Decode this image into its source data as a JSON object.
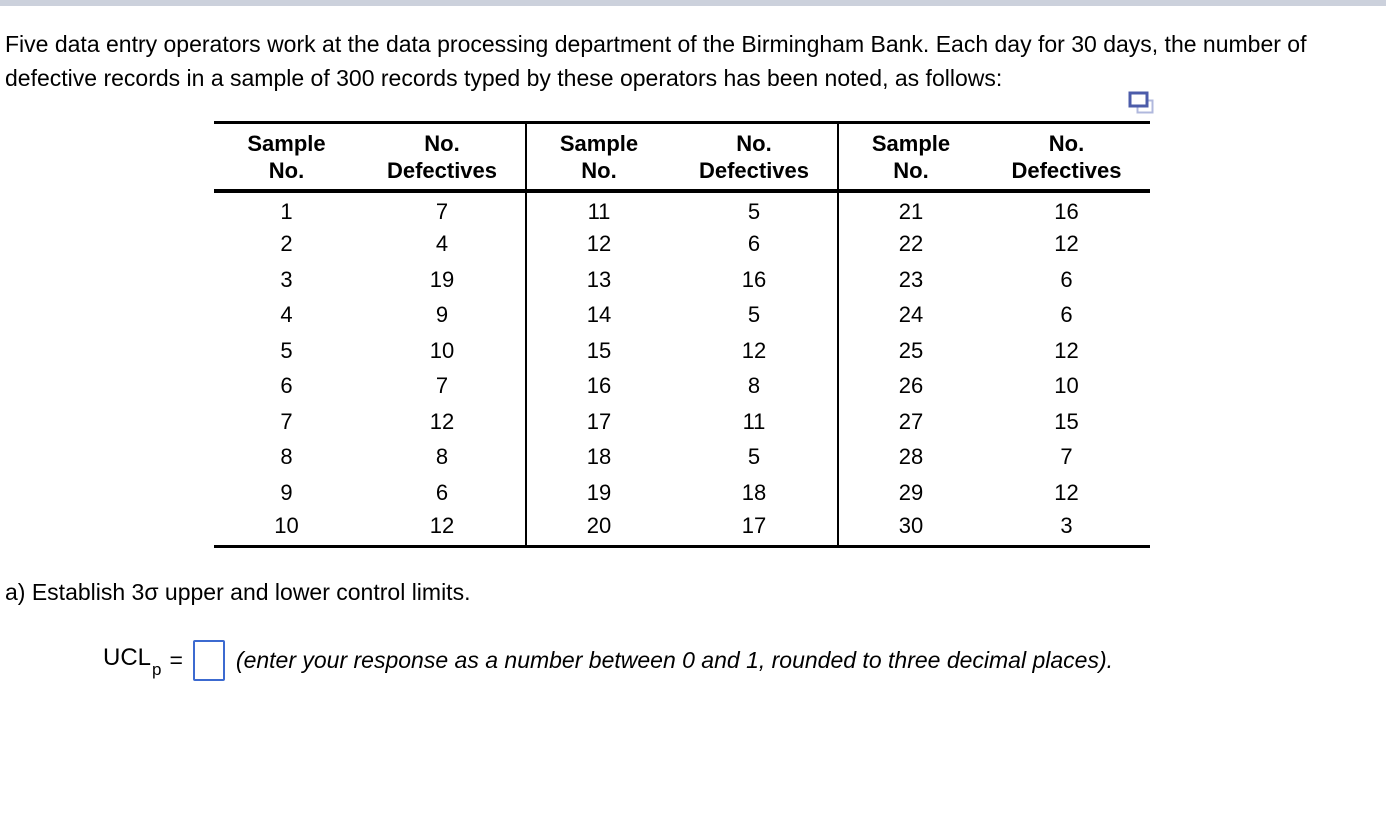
{
  "problem": {
    "statement": "Five data entry operators work at the data processing department of the Birmingham Bank. Each day for 30 days, the number of defective records in a sample of 300 records typed by these operators has been noted, as follows:"
  },
  "table": {
    "header": {
      "sample_line1": "Sample",
      "sample_line2": "No.",
      "defectives_line1": "No.",
      "defectives_line2": "Defectives"
    },
    "groups": [
      {
        "rows": [
          {
            "sample": "1",
            "defectives": "7"
          },
          {
            "sample": "2",
            "defectives": "4"
          },
          {
            "sample": "3",
            "defectives": "19"
          },
          {
            "sample": "4",
            "defectives": "9"
          },
          {
            "sample": "5",
            "defectives": "10"
          },
          {
            "sample": "6",
            "defectives": "7"
          },
          {
            "sample": "7",
            "defectives": "12"
          },
          {
            "sample": "8",
            "defectives": "8"
          },
          {
            "sample": "9",
            "defectives": "6"
          },
          {
            "sample": "10",
            "defectives": "12"
          }
        ]
      },
      {
        "rows": [
          {
            "sample": "11",
            "defectives": "5"
          },
          {
            "sample": "12",
            "defectives": "6"
          },
          {
            "sample": "13",
            "defectives": "16"
          },
          {
            "sample": "14",
            "defectives": "5"
          },
          {
            "sample": "15",
            "defectives": "12"
          },
          {
            "sample": "16",
            "defectives": "8"
          },
          {
            "sample": "17",
            "defectives": "11"
          },
          {
            "sample": "18",
            "defectives": "5"
          },
          {
            "sample": "19",
            "defectives": "18"
          },
          {
            "sample": "20",
            "defectives": "17"
          }
        ]
      },
      {
        "rows": [
          {
            "sample": "21",
            "defectives": "16"
          },
          {
            "sample": "22",
            "defectives": "12"
          },
          {
            "sample": "23",
            "defectives": "6"
          },
          {
            "sample": "24",
            "defectives": "6"
          },
          {
            "sample": "25",
            "defectives": "12"
          },
          {
            "sample": "26",
            "defectives": "10"
          },
          {
            "sample": "27",
            "defectives": "15"
          },
          {
            "sample": "28",
            "defectives": "7"
          },
          {
            "sample": "29",
            "defectives": "12"
          },
          {
            "sample": "30",
            "defectives": "3"
          }
        ]
      }
    ]
  },
  "question_a": "a) Establish 3σ upper and lower control limits.",
  "answer": {
    "label": "UCL",
    "subscript": "p",
    "equals": "=",
    "value": "",
    "hint": "(enter your response as a number between 0 and 1, rounded to three decimal places)."
  },
  "icons": {
    "copy": "copy-table-icon"
  },
  "colors": {
    "input_border": "#3c6ad0",
    "top_bar": "#ccd1dc",
    "icon_dark": "#4c5caa",
    "icon_light": "#b0b8dd"
  }
}
